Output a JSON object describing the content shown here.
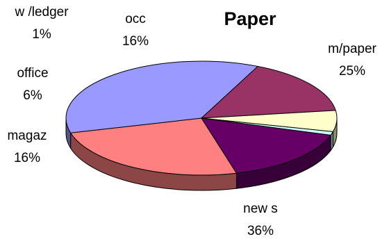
{
  "chart_data": {
    "type": "pie",
    "style": "3d",
    "title": "Paper",
    "slices": [
      {
        "name": "m/paper",
        "value": 25,
        "label": "25%",
        "color": "#ff8080"
      },
      {
        "name": "new s",
        "value": 36,
        "label": "36%",
        "color": "#9999ff"
      },
      {
        "name": "magaz",
        "value": 16,
        "label": "16%",
        "color": "#993366"
      },
      {
        "name": "office",
        "value": 6,
        "label": "6%",
        "color": "#ffffcc"
      },
      {
        "name": "w /ledger",
        "value": 1,
        "label": "1%",
        "color": "#ccffff"
      },
      {
        "name": "occ",
        "value": 16,
        "label": "16%",
        "color": "#660066"
      }
    ]
  }
}
